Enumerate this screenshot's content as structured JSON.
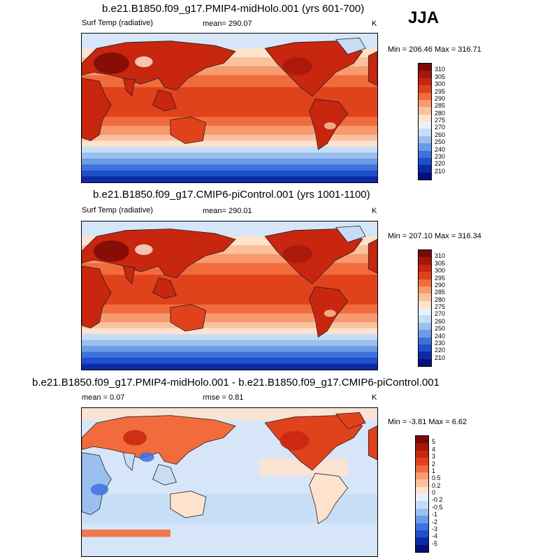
{
  "season": "JJA",
  "panels": [
    {
      "title": "b.e21.B1850.f09_g17.PMIP4-midHolo.001 (yrs 601-700)",
      "left_label": "Surf Temp (radiative)",
      "mid_label": "mean= 290.07",
      "units": "K",
      "minmax": "Min = 206.46 Max = 316.71",
      "colorbar": {
        "labels": [
          "310",
          "305",
          "300",
          "295",
          "290",
          "285",
          "280",
          "275",
          "270",
          "260",
          "250",
          "240",
          "230",
          "220",
          "210"
        ],
        "colors": [
          "#7a0a05",
          "#a5170c",
          "#c8260f",
          "#e0421c",
          "#f26b3c",
          "#f79a6f",
          "#fbc19c",
          "#fde2cd",
          "#e8f1fb",
          "#c7ddf5",
          "#9bc0ef",
          "#6c9ce6",
          "#3f71dd",
          "#1f4fcc",
          "#0d2aa6",
          "#03117a"
        ]
      },
      "map_type": "temperature"
    },
    {
      "title": "b.e21.B1850.f09_g17.CMIP6-piControl.001 (yrs 1001-1100)",
      "left_label": "Surf Temp (radiative)",
      "mid_label": "mean= 290.01",
      "units": "K",
      "minmax": "Min = 207.10 Max = 316.34",
      "colorbar": {
        "labels": [
          "310",
          "305",
          "300",
          "295",
          "290",
          "285",
          "280",
          "275",
          "270",
          "260",
          "250",
          "240",
          "230",
          "220",
          "210"
        ],
        "colors": [
          "#7a0a05",
          "#a5170c",
          "#c8260f",
          "#e0421c",
          "#f26b3c",
          "#f79a6f",
          "#fbc19c",
          "#fde2cd",
          "#e8f1fb",
          "#c7ddf5",
          "#9bc0ef",
          "#6c9ce6",
          "#3f71dd",
          "#1f4fcc",
          "#0d2aa6",
          "#03117a"
        ]
      },
      "map_type": "temperature"
    },
    {
      "title": "b.e21.B1850.f09_g17.PMIP4-midHolo.001 - b.e21.B1850.f09_g17.CMIP6-piControl.001",
      "left_label": "mean =   0.07",
      "mid_label": "rmse =   0.81",
      "units": "K",
      "minmax": "Min =  -3.81 Max =   6.62",
      "colorbar": {
        "labels": [
          "5",
          "4",
          "3",
          "2",
          "1",
          "0.5",
          "0.2",
          "0",
          "-0.2",
          "-0.5",
          "-1",
          "-2",
          "-3",
          "-4",
          "-5"
        ],
        "colors": [
          "#7a0a05",
          "#a5170c",
          "#c8260f",
          "#e0421c",
          "#f26b3c",
          "#f79a6f",
          "#fbc19c",
          "#fde2cd",
          "#e8f1fb",
          "#c7ddf5",
          "#9bc0ef",
          "#6c9ce6",
          "#3f71dd",
          "#1f4fcc",
          "#0d2aa6",
          "#03117a"
        ]
      },
      "map_type": "difference"
    }
  ]
}
